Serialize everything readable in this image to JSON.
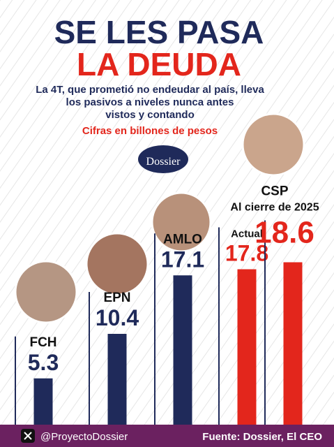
{
  "header": {
    "title_line1": "SE LES PASA",
    "title_line2": "LA DEUDA",
    "subtitle": [
      "La 4T, que prometió no endeudar al país, lleva",
      "los pasivos a niveles nunca antes",
      "vistos y contando"
    ],
    "units": "Cifras en billones de pesos",
    "logo": "Dossier"
  },
  "chart_data": {
    "type": "bar",
    "categories": [
      "FCH",
      "EPN",
      "AMLO",
      "Actual",
      "CSP"
    ],
    "values": [
      5.3,
      10.4,
      17.1,
      17.8,
      18.6
    ],
    "colors": [
      "#1f2a5a",
      "#1f2a5a",
      "#1f2a5a",
      "#e3261c",
      "#e3261c"
    ],
    "annotation": "Al cierre de 2025"
  },
  "footer": {
    "handle": "@ProyectoDossier",
    "source": "Fuente: Dossier, El CEO"
  }
}
